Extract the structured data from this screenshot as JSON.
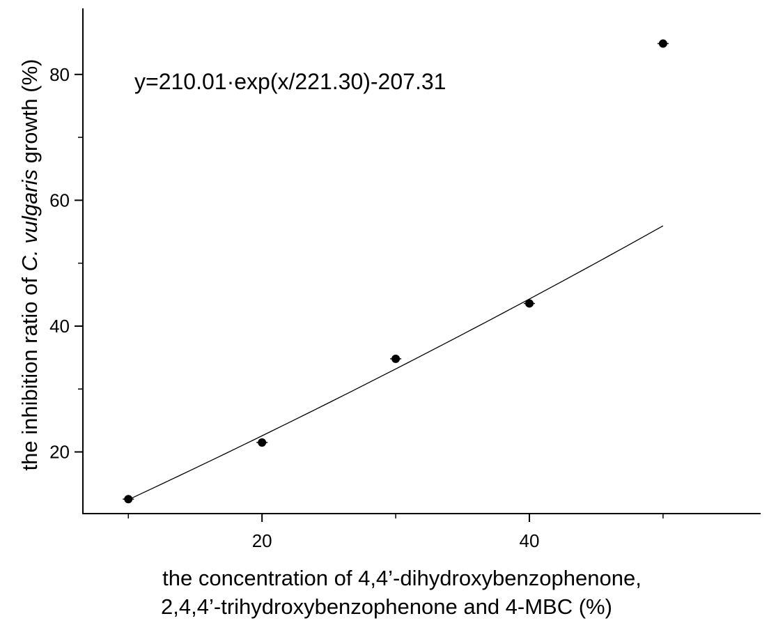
{
  "chart_data": {
    "type": "scatter",
    "title": "",
    "xlabel_lines": [
      "the concentration of 4,4’-dihydroxybenzophenone,",
      "2,4,4’-trihydroxybenzophenone and 4-MBC (%)"
    ],
    "ylabel_parts": {
      "before": "the inhibition ratio of ",
      "italic": "C. vulgaris",
      "after": " growth (%)"
    },
    "xlim": [
      6.6,
      57.3
    ],
    "ylim": [
      10.2,
      90.5
    ],
    "x_ticks": [
      20,
      40
    ],
    "x_minor_ticks": [
      10,
      30,
      50
    ],
    "y_ticks": [
      20,
      40,
      60,
      80
    ],
    "y_minor_ticks": [
      30,
      50,
      70
    ],
    "points": [
      {
        "x": 10,
        "y": 12.5
      },
      {
        "x": 20,
        "y": 21.5
      },
      {
        "x": 30,
        "y": 34.8
      },
      {
        "x": 40,
        "y": 43.6
      },
      {
        "x": 50,
        "y": 84.9
      }
    ],
    "fit": {
      "equation": "y=210.01·exp(x/221.30)-207.31",
      "A": 210.01,
      "t": 221.3,
      "y0": -207.31,
      "x_range": [
        10,
        50
      ]
    },
    "grid": false,
    "legend": "none"
  }
}
